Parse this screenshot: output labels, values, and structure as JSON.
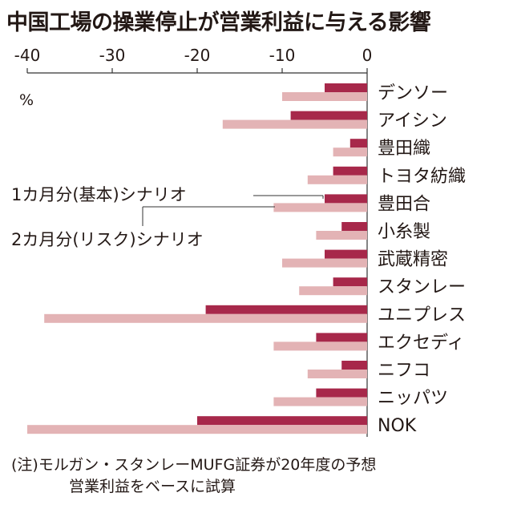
{
  "title": "中国工場の操業停止が営業利益に与える影響",
  "note_line1": "(注)モルガン・スタンレーMUFG証券が20年度の予想",
  "note_line2": "営業利益をベースに試算",
  "colors": {
    "base": "#a7284a",
    "risk": "#e3b3b5",
    "text": "#231815",
    "axis": "#333333"
  },
  "chart_data": {
    "type": "bar",
    "orientation": "horizontal",
    "unit_label": "%",
    "xlim": [
      -40,
      0
    ],
    "xticks": [
      -40,
      -30,
      -20,
      -10,
      0
    ],
    "xtick_labels": [
      "-40",
      "-30",
      "-20",
      "-10",
      "0"
    ],
    "categories": [
      "デンソー",
      "アイシン",
      "豊田織",
      "トヨタ紡織",
      "豊田合",
      "小糸製",
      "武蔵精密",
      "スタンレー",
      "ユニプレス",
      "エクセディ",
      "ニフコ",
      "ニッパツ",
      "NOK"
    ],
    "series": [
      {
        "name": "1カ月分(基本)シナリオ",
        "color": "#a7284a",
        "values": [
          -5,
          -9,
          -2,
          -4,
          -5,
          -3,
          -5,
          -4,
          -19,
          -6,
          -3,
          -6,
          -20
        ]
      },
      {
        "name": "2カ月分(リスク)シナリオ",
        "color": "#e3b3b5",
        "values": [
          -10,
          -17,
          -4,
          -7,
          -11,
          -6,
          -10,
          -8,
          -38,
          -11,
          -7,
          -11,
          -40
        ]
      }
    ],
    "legend_placement": "inline-left"
  }
}
